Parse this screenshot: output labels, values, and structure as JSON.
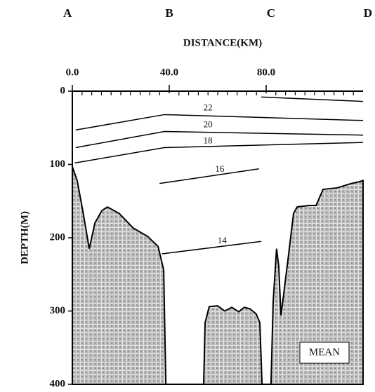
{
  "chart_data": {
    "type": "section",
    "x_label": "DISTANCE(KM)",
    "y_label": "DEPTH(M)",
    "xlim": [
      0,
      120
    ],
    "ylim": [
      0,
      400
    ],
    "y_inverted": true,
    "xticks": [
      {
        "value": 0,
        "label": "0.0"
      },
      {
        "value": 40,
        "label": "40.0"
      },
      {
        "value": 80,
        "label": "80.0"
      }
    ],
    "xminorticks": [
      4,
      8,
      12,
      16,
      20,
      24,
      28,
      32,
      36,
      44,
      48,
      52,
      56,
      60,
      64,
      68,
      72,
      76,
      84,
      88,
      92,
      96,
      100,
      104,
      108,
      112,
      116
    ],
    "yticks": [
      0,
      100,
      200,
      300,
      400
    ],
    "stations": [
      {
        "label": "A",
        "x": -2
      },
      {
        "label": "B",
        "x": 40
      },
      {
        "label": "C",
        "x": 82
      },
      {
        "label": "D",
        "x": 122
      }
    ],
    "contours": [
      {
        "x": [
          78,
          120
        ],
        "y": [
          8,
          14
        ]
      },
      {
        "level": 22,
        "x": [
          1.4,
          38,
          120
        ],
        "y": [
          53,
          32,
          40
        ]
      },
      {
        "level": 20,
        "x": [
          1.4,
          38,
          120
        ],
        "y": [
          77,
          55,
          60
        ]
      },
      {
        "level": 18,
        "x": [
          1,
          38,
          120
        ],
        "y": [
          98,
          77,
          70
        ]
      },
      {
        "level": 16,
        "x": [
          36,
          77
        ],
        "y": [
          126,
          106
        ]
      },
      {
        "level": 14,
        "x": [
          37,
          78
        ],
        "y": [
          222,
          205
        ]
      }
    ],
    "bathymetry": [
      {
        "x": [
          0,
          2,
          4.3,
          7,
          9.3,
          12.2,
          14.5,
          19.4,
          25.2,
          31,
          35.4,
          37.7,
          38.6
        ],
        "depth": [
          103,
          122,
          163,
          215,
          180,
          163,
          158,
          167,
          187,
          198,
          212,
          244,
          400
        ]
      },
      {
        "x": [
          54.2,
          54.8,
          56.5,
          60,
          62.9,
          65.8,
          68.7,
          71,
          73.3,
          75.9,
          77.4,
          78.3
        ],
        "depth": [
          400,
          316,
          294,
          293,
          300,
          295,
          301,
          295,
          297,
          304,
          316,
          400
        ]
      },
      {
        "x": [
          82,
          82.9,
          84.3,
          85.2,
          86.1,
          87.2,
          89,
          91.3,
          92.8,
          97.7,
          100.6,
          103.5,
          109.3,
          112.2,
          115.1,
          118,
          120,
          120
        ],
        "depth": [
          400,
          287,
          215,
          239,
          306,
          278,
          230,
          167,
          158,
          156,
          156,
          134,
          132,
          129,
          126,
          124,
          122,
          400
        ]
      }
    ],
    "annotation": "MEAN"
  }
}
